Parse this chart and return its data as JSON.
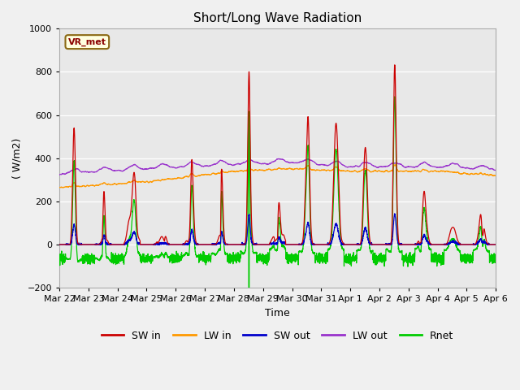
{
  "title": "Short/Long Wave Radiation",
  "xlabel": "Time",
  "ylabel": "( W/m2)",
  "ylim": [
    -200,
    1000
  ],
  "yticks": [
    -200,
    0,
    200,
    400,
    600,
    800,
    1000
  ],
  "x_labels": [
    "Mar 22",
    "Mar 23",
    "Mar 24",
    "Mar 25",
    "Mar 26",
    "Mar 27",
    "Mar 28",
    "Mar 29",
    "Mar 30",
    "Mar 31",
    "Apr 1",
    "Apr 2",
    "Apr 3",
    "Apr 4",
    "Apr 5",
    "Apr 6"
  ],
  "station_label": "VR_met",
  "colors": {
    "SW_in": "#cc0000",
    "LW_in": "#ff9900",
    "SW_out": "#0000cc",
    "LW_out": "#9933cc",
    "Rnet": "#00cc00"
  },
  "legend_labels": [
    "SW in",
    "LW in",
    "SW out",
    "LW out",
    "Rnet"
  ],
  "fig_facecolor": "#f0f0f0",
  "axes_facecolor": "#e8e8e8"
}
